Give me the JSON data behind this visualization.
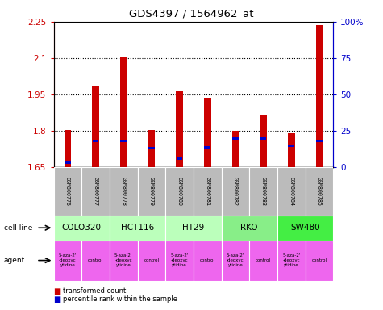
{
  "title": "GDS4397 / 1564962_at",
  "samples": [
    "GSM800776",
    "GSM800777",
    "GSM800778",
    "GSM800779",
    "GSM800780",
    "GSM800781",
    "GSM800782",
    "GSM800783",
    "GSM800784",
    "GSM800785"
  ],
  "red_values": [
    1.803,
    1.985,
    2.108,
    1.803,
    1.963,
    1.937,
    1.8,
    1.865,
    1.79,
    2.235
  ],
  "blue_values": [
    3,
    18,
    18,
    13,
    6,
    14,
    20,
    20,
    15,
    18
  ],
  "ylim_left": [
    1.65,
    2.25
  ],
  "ylim_right": [
    0,
    100
  ],
  "left_ticks": [
    1.65,
    1.8,
    1.95,
    2.1,
    2.25
  ],
  "right_ticks": [
    0,
    25,
    50,
    75,
    100
  ],
  "left_tick_labels": [
    "1.65",
    "1.8",
    "1.95",
    "2.1",
    "2.25"
  ],
  "right_tick_labels": [
    "0",
    "25",
    "50",
    "75",
    "100%"
  ],
  "cell_lines": [
    {
      "label": "COLO320",
      "start": 0,
      "end": 2,
      "color": "#bbffbb"
    },
    {
      "label": "HCT116",
      "start": 2,
      "end": 4,
      "color": "#bbffbb"
    },
    {
      "label": "HT29",
      "start": 4,
      "end": 6,
      "color": "#bbffbb"
    },
    {
      "label": "RKO",
      "start": 6,
      "end": 8,
      "color": "#88ee88"
    },
    {
      "label": "SW480",
      "start": 8,
      "end": 10,
      "color": "#44ee44"
    }
  ],
  "agents": [
    {
      "label": "5-aza-2'\n-deoxyc\nytidine",
      "start": 0,
      "end": 1,
      "color": "#ee66ee"
    },
    {
      "label": "control",
      "start": 1,
      "end": 2,
      "color": "#ee66ee"
    },
    {
      "label": "5-aza-2'\n-deoxyc\nytidine",
      "start": 2,
      "end": 3,
      "color": "#ee66ee"
    },
    {
      "label": "control",
      "start": 3,
      "end": 4,
      "color": "#ee66ee"
    },
    {
      "label": "5-aza-2'\n-deoxyc\nytidine",
      "start": 4,
      "end": 5,
      "color": "#ee66ee"
    },
    {
      "label": "control",
      "start": 5,
      "end": 6,
      "color": "#ee66ee"
    },
    {
      "label": "5-aza-2'\n-deoxyc\nytidine",
      "start": 6,
      "end": 7,
      "color": "#ee66ee"
    },
    {
      "label": "control",
      "start": 7,
      "end": 8,
      "color": "#ee66ee"
    },
    {
      "label": "5-aza-2'\n-deoxyc\nytidine",
      "start": 8,
      "end": 9,
      "color": "#ee66ee"
    },
    {
      "label": "control",
      "start": 9,
      "end": 10,
      "color": "#ee66ee"
    }
  ],
  "bar_color": "#cc0000",
  "blue_color": "#0000cc",
  "bg_color": "#ffffff",
  "axis_color_left": "#cc0000",
  "axis_color_right": "#0000cc",
  "sample_bg_color": "#bbbbbb",
  "legend_red": "transformed count",
  "legend_blue": "percentile rank within the sample",
  "bar_width": 0.25
}
